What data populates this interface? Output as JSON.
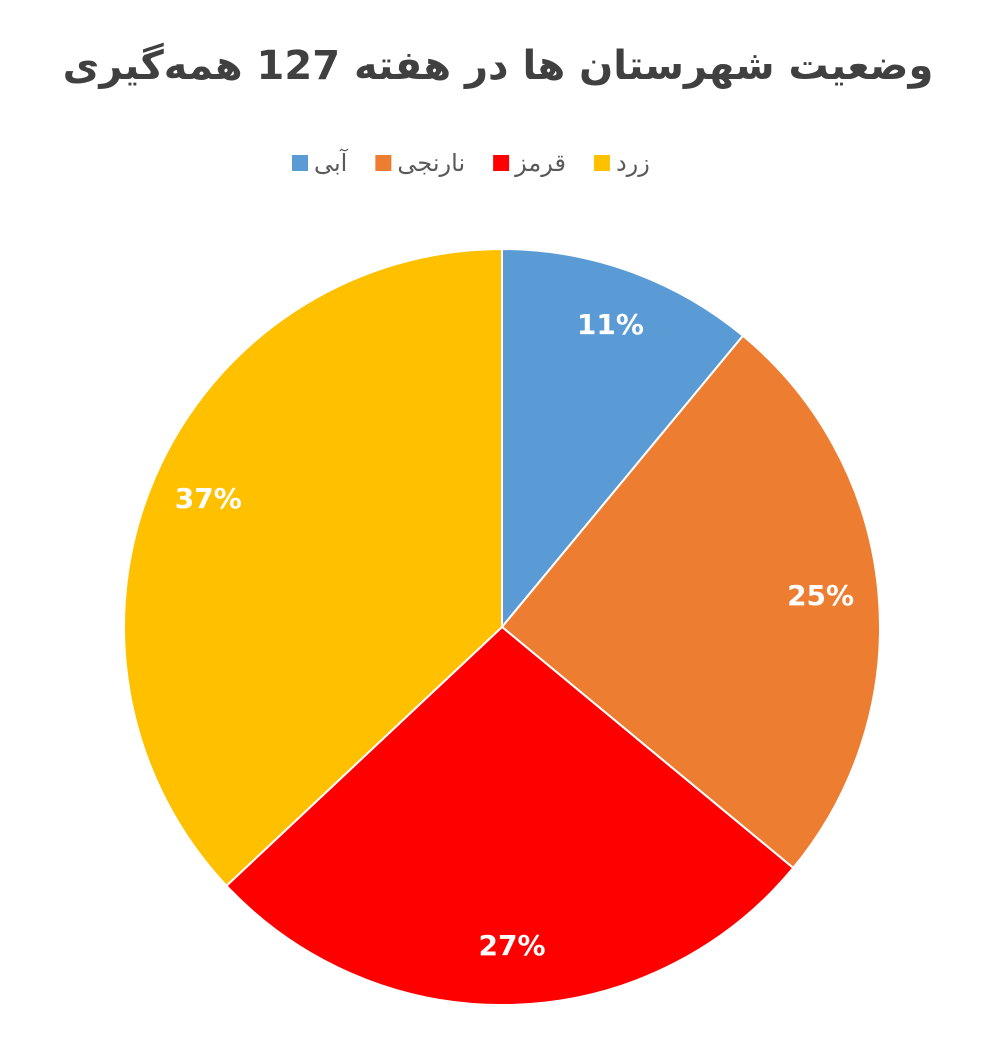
{
  "chart_data": {
    "type": "pie",
    "title": "وضعیت شهرستان ها در هفته 127 همه‌گیری",
    "categories": [
      "آبی",
      "نارنجی",
      "قرمز",
      "زرد"
    ],
    "values": [
      11,
      25,
      27,
      37
    ],
    "value_labels": [
      "11%",
      "25%",
      "27%",
      "37%"
    ],
    "colors": [
      "#5b9bd5",
      "#ed7d31",
      "#ff0000",
      "#ffc000"
    ],
    "legend": "top"
  }
}
